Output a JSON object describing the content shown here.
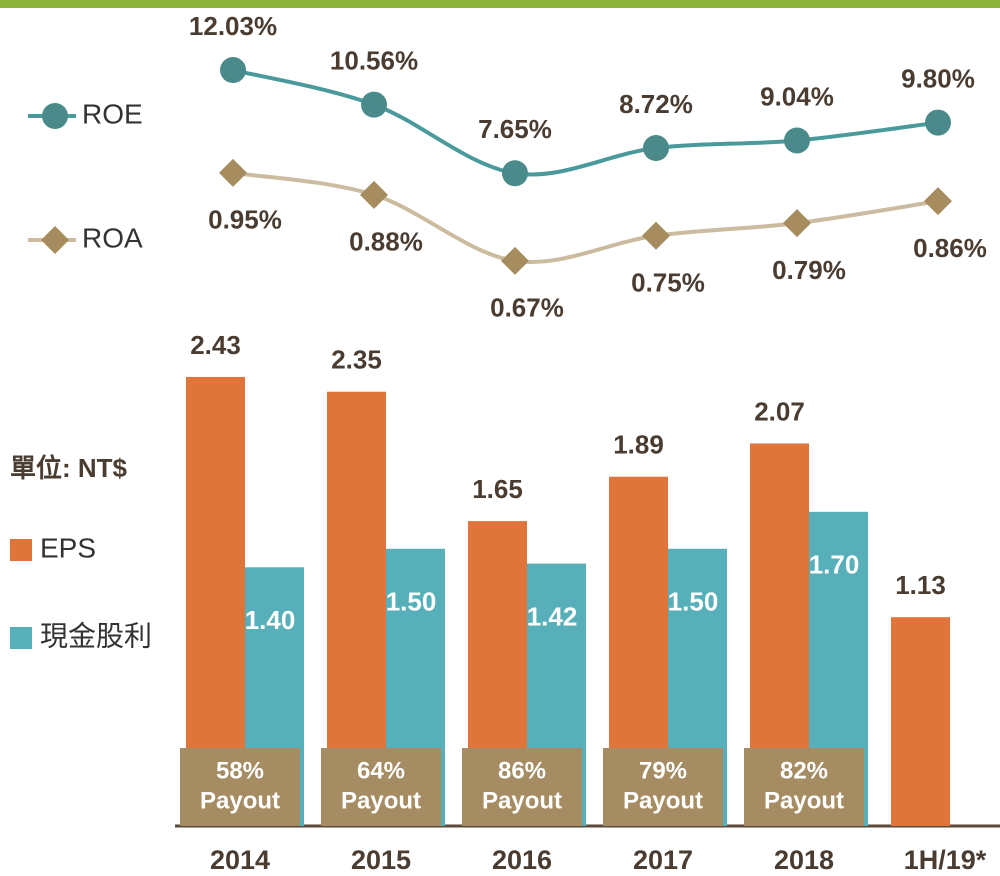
{
  "chart_data": [
    {
      "type": "line",
      "ylim": [
        1,
        15
      ],
      "y2lim": [
        0.45,
        1.5
      ],
      "series": [
        {
          "name": "ROE",
          "color": "#4a9a9c",
          "marker_color": "#4a8a8a",
          "marker": "circle",
          "values": [
            12.03,
            10.56,
            7.65,
            8.72,
            9.04,
            9.8
          ],
          "value_labels": [
            "12.03%",
            "10.56%",
            "7.65%",
            "8.72%",
            "9.04%",
            "9.80%"
          ]
        },
        {
          "name": "ROA",
          "color": "#cbbb9f",
          "marker_color": "#a68c5e",
          "marker": "diamond",
          "axis": "y2",
          "values": [
            0.95,
            0.88,
            0.67,
            0.75,
            0.79,
            0.86
          ],
          "value_labels": [
            "0.95%",
            "0.88%",
            "0.67%",
            "0.75%",
            "0.79%",
            "0.86%"
          ]
        }
      ]
    },
    {
      "type": "bar",
      "unit_label": "單位: NT$",
      "categories": [
        "2014",
        "2015",
        "2016",
        "2017",
        "2018",
        "1H/19*"
      ],
      "ylim": [
        0,
        2.5
      ],
      "series": [
        {
          "name": "EPS",
          "color": "#e0753b",
          "values": [
            2.43,
            2.35,
            1.65,
            1.89,
            2.07,
            1.13
          ]
        },
        {
          "name": "現金股利",
          "color": "#57b0b9",
          "values": [
            1.4,
            1.5,
            1.42,
            1.5,
            1.7,
            null
          ],
          "value_labels": [
            "1.40",
            "1.50",
            "1.42",
            "1.50",
            "1.70",
            null
          ]
        }
      ],
      "payout": {
        "label": "Payout",
        "color": "#a68c62",
        "values": [
          58,
          64,
          86,
          79,
          82,
          null
        ],
        "value_labels": [
          "58%",
          "64%",
          "86%",
          "79%",
          "82%",
          null
        ]
      }
    }
  ]
}
